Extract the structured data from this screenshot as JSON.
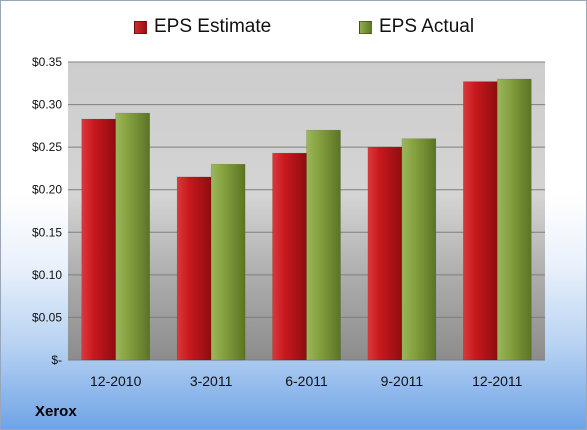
{
  "legend": {
    "estimate_label": "EPS Estimate",
    "actual_label": "EPS Actual"
  },
  "company": "Xerox",
  "colors": {
    "estimate": "#c0181c",
    "actual": "#7e9a3a",
    "gridline": "#7f7f7f"
  },
  "chart_data": {
    "type": "bar",
    "title": "",
    "xlabel": "",
    "ylabel": "",
    "categories": [
      "12-2010",
      "3-2011",
      "6-2011",
      "9-2011",
      "12-2011"
    ],
    "series": [
      {
        "name": "EPS Estimate",
        "values": [
          0.283,
          0.215,
          0.243,
          0.25,
          0.327
        ]
      },
      {
        "name": "EPS Actual",
        "values": [
          0.29,
          0.23,
          0.27,
          0.26,
          0.33
        ]
      }
    ],
    "ylim": [
      0,
      0.35
    ],
    "yticks": [
      0,
      0.05,
      0.1,
      0.15,
      0.2,
      0.25,
      0.3,
      0.35
    ],
    "ytick_labels": [
      "$-",
      "$0.05",
      "$0.10",
      "$0.15",
      "$0.20",
      "$0.25",
      "$0.30",
      "$0.35"
    ],
    "grid": true,
    "legend_position": "top"
  }
}
